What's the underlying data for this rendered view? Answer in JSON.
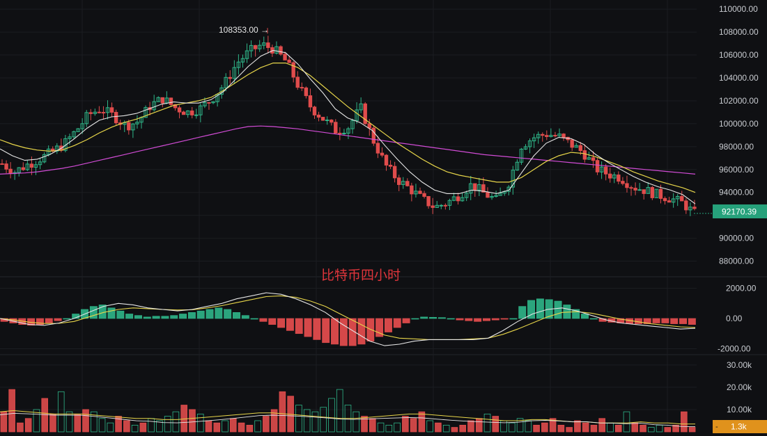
{
  "chart_data": [
    {
      "type": "candlestick",
      "title": "比特币四小时",
      "y_ticks": [
        "110000.00",
        "108000.00",
        "106000.00",
        "104000.00",
        "102000.00",
        "100000.00",
        "98000.00",
        "96000.00",
        "94000.00",
        "92000.00",
        "90000.00",
        "88000.00"
      ],
      "y_range": [
        87000,
        110800
      ],
      "last_price": "92170.39",
      "high_annotation": "108353.00 →",
      "high_value": 108353,
      "close_path": [
        96500,
        95800,
        96400,
        96900,
        97500,
        98200,
        99400,
        100800,
        101300,
        100700,
        99800,
        100200,
        101600,
        102200,
        101400,
        101000,
        101300,
        102200,
        103500,
        105300,
        106300,
        106900,
        106500,
        105400,
        103200,
        101400,
        100400,
        99400,
        99700,
        101400,
        98600,
        96400,
        95100,
        94300,
        93400,
        92700,
        93100,
        93800,
        94700,
        93900,
        93300,
        94900,
        98100,
        98800,
        99100,
        98900,
        98200,
        97500,
        96100,
        95600,
        95300,
        94500,
        94200,
        93800,
        93500,
        93100,
        92170
      ],
      "ma_fast": [
        97800,
        97200,
        96800,
        96900,
        97300,
        97900,
        98700,
        99600,
        100300,
        100600,
        100700,
        100900,
        101300,
        101700,
        101900,
        101800,
        101800,
        102100,
        102800,
        103900,
        105000,
        105900,
        106400,
        106200,
        105200,
        103900,
        102700,
        101300,
        100500,
        100100,
        99400,
        98100,
        96900,
        95800,
        94900,
        94200,
        93900,
        93900,
        94200,
        94100,
        93900,
        94200,
        95700,
        97200,
        98300,
        98800,
        98700,
        98200,
        97300,
        96600,
        96000,
        95400,
        94900,
        94500,
        94200,
        93800,
        93000
      ],
      "ma_mid": [
        98600,
        98200,
        97900,
        97700,
        97600,
        97700,
        98100,
        98600,
        99200,
        99700,
        100100,
        100400,
        100800,
        101200,
        101600,
        101800,
        102000,
        102300,
        102900,
        103600,
        104300,
        104900,
        105300,
        105300,
        104900,
        104200,
        103300,
        102400,
        101500,
        100700,
        99900,
        99100,
        98300,
        97600,
        96900,
        96300,
        95800,
        95500,
        95300,
        95100,
        94900,
        94900,
        95300,
        96000,
        96700,
        97200,
        97500,
        97400,
        97100,
        96700,
        96300,
        95800,
        95400,
        95000,
        94700,
        94400,
        94000
      ],
      "ma_slow": [
        95600,
        95650,
        95700,
        95800,
        95950,
        96100,
        96300,
        96550,
        96800,
        97050,
        97300,
        97550,
        97800,
        98050,
        98300,
        98550,
        98800,
        99050,
        99300,
        99550,
        99750,
        99800,
        99750,
        99650,
        99550,
        99400,
        99250,
        99100,
        98950,
        98800,
        98650,
        98500,
        98350,
        98200,
        98050,
        97900,
        97750,
        97600,
        97450,
        97300,
        97200,
        97100,
        97000,
        96900,
        96800,
        96700,
        96600,
        96500,
        96400,
        96300,
        96200,
        96100,
        96000,
        95900,
        95800,
        95700,
        95600
      ]
    },
    {
      "type": "macd",
      "y_ticks": [
        "2000.00",
        "0.00",
        "-2000.00"
      ],
      "y_range": [
        -2300,
        2300
      ],
      "dif": [
        0,
        -200,
        -400,
        -450,
        -300,
        0,
        400,
        800,
        1000,
        900,
        700,
        600,
        500,
        600,
        800,
        1000,
        1300,
        1500,
        1700,
        1600,
        1300,
        900,
        400,
        -300,
        -900,
        -1500,
        -1800,
        -1700,
        -1500,
        -1400,
        -1400,
        -1400,
        -1400,
        -1300,
        -800,
        -200,
        300,
        600,
        700,
        500,
        200,
        -100,
        -300,
        -400,
        -500,
        -600,
        -700,
        -650
      ],
      "dea": [
        0,
        -100,
        -250,
        -330,
        -320,
        -200,
        100,
        400,
        600,
        700,
        650,
        600,
        560,
        580,
        700,
        850,
        1050,
        1250,
        1450,
        1500,
        1400,
        1150,
        800,
        300,
        -200,
        -700,
        -1100,
        -1300,
        -1350,
        -1400,
        -1400,
        -1400,
        -1350,
        -1300,
        -1050,
        -700,
        -300,
        100,
        400,
        450,
        350,
        150,
        -50,
        -200,
        -350,
        -450,
        -550,
        -600
      ],
      "hist": [
        -200,
        -300,
        -400,
        -450,
        -400,
        -300,
        -150,
        0,
        300,
        600,
        800,
        900,
        700,
        500,
        300,
        200,
        100,
        150,
        150,
        200,
        300,
        400,
        500,
        600,
        700,
        600,
        400,
        200,
        0,
        -200,
        -400,
        -600,
        -800,
        -1000,
        -1200,
        -1400,
        -1600,
        -1700,
        -1800,
        -1800,
        -1700,
        -1500,
        -1200,
        -900,
        -600,
        -300,
        0,
        100,
        80,
        60,
        0,
        -100,
        -150,
        -200,
        -150,
        -100,
        -50,
        0,
        800,
        1200,
        1300,
        1250,
        1150,
        900,
        600,
        300,
        0,
        -200,
        -250,
        -300,
        -350,
        -350,
        -350,
        -300,
        -300,
        -350,
        -350,
        -400
      ]
    },
    {
      "type": "volume",
      "y_ticks": [
        "30.00k",
        "20.00k",
        "10.00k"
      ],
      "y_range": [
        0,
        34000
      ],
      "last_volume": "1.3k",
      "volumes": [
        9000,
        19000,
        4000,
        6000,
        10000,
        15000,
        8000,
        18000,
        9000,
        8000,
        10000,
        9000,
        6000,
        4000,
        7000,
        5000,
        3000,
        4000,
        6000,
        5000,
        7000,
        9000,
        12000,
        10000,
        8000,
        5000,
        4000,
        5000,
        6000,
        4000,
        3000,
        5000,
        7000,
        10000,
        18000,
        16000,
        12000,
        10000,
        9000,
        11000,
        15000,
        19000,
        12000,
        9000,
        7000,
        6000,
        4000,
        3000,
        4000,
        7000,
        6000,
        9000,
        5000,
        4000,
        3000,
        2000,
        3000,
        5000,
        6000,
        8000,
        7000,
        5000,
        4000,
        6000,
        5000,
        3000,
        4000,
        6000,
        3000,
        2000,
        5000,
        4000,
        3000,
        6000,
        4000,
        3000,
        9000,
        4000,
        3000,
        2000,
        3000,
        2000,
        3000,
        9000,
        2000
      ],
      "ma": [
        9000,
        9500,
        9000,
        8500,
        8000,
        8000,
        8000,
        7500,
        7000,
        6500,
        6000,
        6000,
        5500,
        5500,
        6000,
        6500,
        7000,
        7500,
        8000,
        8500,
        8500,
        8000,
        7500,
        7000,
        6500,
        6000,
        6000,
        6500,
        7000,
        7500,
        8000,
        8000,
        7500,
        7000,
        6500,
        6000,
        5500,
        5000,
        5000,
        5500,
        5500,
        5000,
        4500,
        4500,
        4000,
        4000,
        4000,
        4500,
        4000,
        4000,
        3500,
        3500
      ]
    }
  ]
}
